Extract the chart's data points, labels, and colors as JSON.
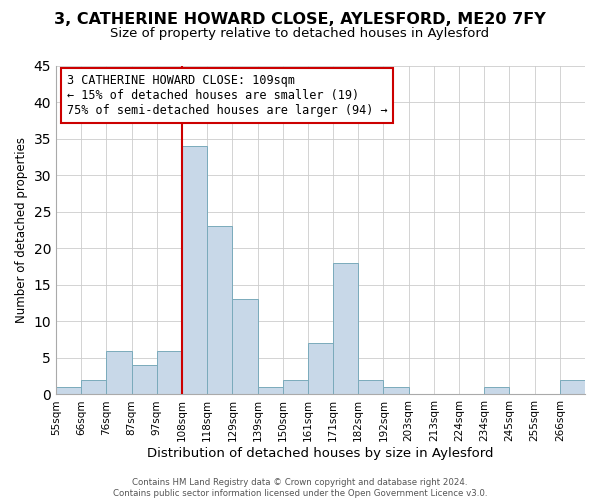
{
  "title": "3, CATHERINE HOWARD CLOSE, AYLESFORD, ME20 7FY",
  "subtitle": "Size of property relative to detached houses in Aylesford",
  "xlabel": "Distribution of detached houses by size in Aylesford",
  "ylabel": "Number of detached properties",
  "footer_line1": "Contains HM Land Registry data © Crown copyright and database right 2024.",
  "footer_line2": "Contains public sector information licensed under the Open Government Licence v3.0.",
  "bin_labels": [
    "55sqm",
    "66sqm",
    "76sqm",
    "87sqm",
    "97sqm",
    "108sqm",
    "118sqm",
    "129sqm",
    "139sqm",
    "150sqm",
    "161sqm",
    "171sqm",
    "182sqm",
    "192sqm",
    "203sqm",
    "213sqm",
    "224sqm",
    "234sqm",
    "245sqm",
    "255sqm",
    "266sqm"
  ],
  "bar_values": [
    1,
    2,
    6,
    4,
    6,
    34,
    23,
    13,
    1,
    2,
    7,
    18,
    2,
    1,
    0,
    0,
    0,
    1,
    0,
    0,
    2
  ],
  "bar_color": "#c8d8e8",
  "bar_edgecolor": "#7aaabb",
  "ylim": [
    0,
    45
  ],
  "yticks": [
    0,
    5,
    10,
    15,
    20,
    25,
    30,
    35,
    40,
    45
  ],
  "property_line_x": 5.0,
  "property_line_color": "#cc0000",
  "annotation_text_line1": "3 CATHERINE HOWARD CLOSE: 109sqm",
  "annotation_text_line2": "← 15% of detached houses are smaller (19)",
  "annotation_text_line3": "75% of semi-detached houses are larger (94) →",
  "annotation_fontsize": 8.5,
  "annotation_box_color": "#ffffff",
  "annotation_box_edgecolor": "#cc0000",
  "title_fontsize": 11.5,
  "subtitle_fontsize": 9.5,
  "xlabel_fontsize": 9.5,
  "ylabel_fontsize": 8.5,
  "background_color": "#ffffff",
  "grid_color": "#cccccc"
}
